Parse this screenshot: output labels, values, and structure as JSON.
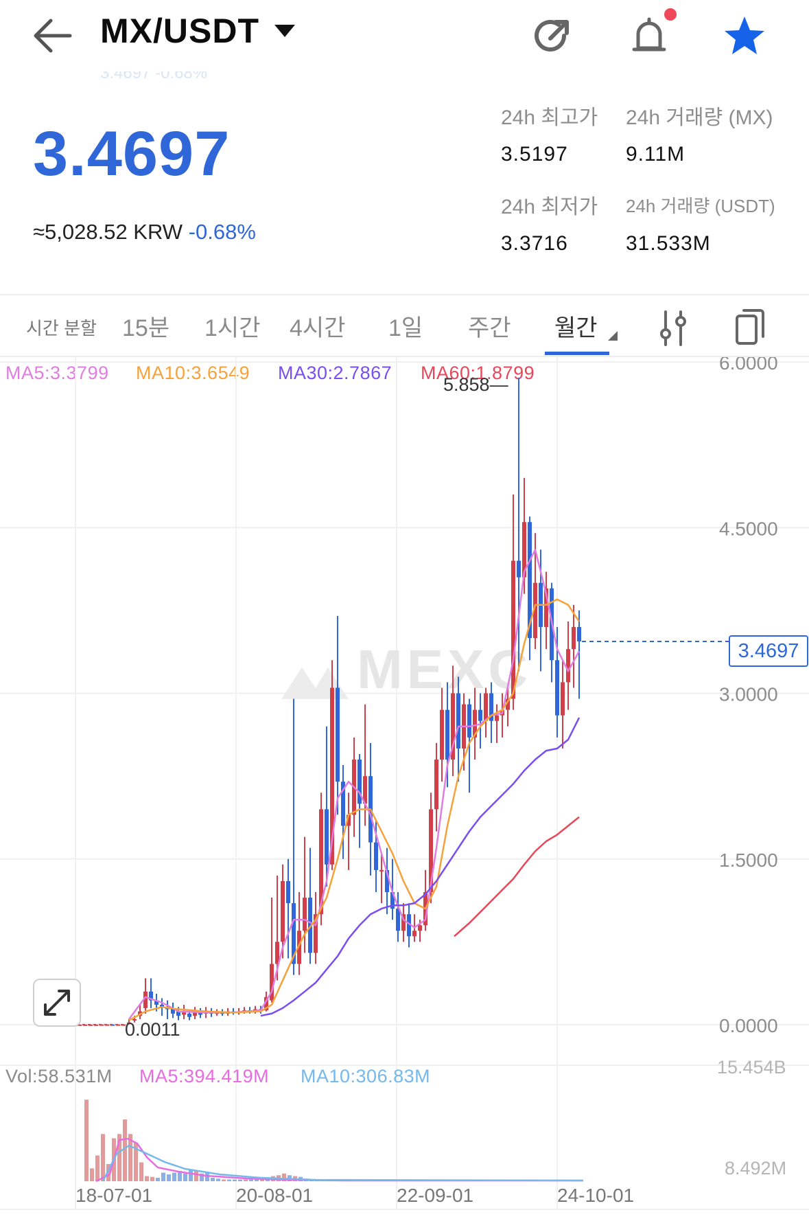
{
  "header": {
    "pair": "MX/USDT",
    "back_icon": "arrow-left-icon",
    "share_icon": "share-arrow-icon",
    "alert_icon": "bell-icon",
    "favorite_icon": "star-icon",
    "alert_dot_color": "#f0485b",
    "favorite_color": "#1662e8",
    "ghost_ticker": "3.4697 -0.68%"
  },
  "ticker": {
    "last_price": "3.4697",
    "krw_equiv": "≈5,028.52 KRW",
    "change_pct": "-0.68%",
    "price_color": "#2f66d8",
    "stats": {
      "high_label": "24h 최고가",
      "high_value": "3.5197",
      "vol_mx_label": "24h 거래량 (MX)",
      "vol_mx_value": "9.11M",
      "low_label": "24h 최저가",
      "low_value": "3.3716",
      "vol_usdt_label": "24h 거래량 (USDT)",
      "vol_usdt_value": "31.533M"
    }
  },
  "tabs": {
    "items": [
      "시간 분할",
      "15분",
      "1시간",
      "4시간",
      "1일",
      "주간",
      "월간"
    ],
    "active": "월간",
    "indicator_icon": "sliders-icon",
    "copy_icon": "copy-icon",
    "accent_color": "#2f66d8"
  },
  "chart": {
    "watermark": "MEXC",
    "expand_icon": "expand-arrows-icon",
    "price_tag": "3.4697",
    "ma_legend": [
      {
        "label": "MA5:3.3799",
        "color": "#e07ee0"
      },
      {
        "label": "MA10:3.6549",
        "color": "#f5a23a"
      },
      {
        "label": "MA30:2.7867",
        "color": "#7a4df2"
      },
      {
        "label": "MA60:1.8799",
        "color": "#e8475a"
      }
    ],
    "vol_legend": [
      {
        "label": "Vol:58.531M",
        "color": "#8a8a8a"
      },
      {
        "label": "MA5:394.419M",
        "color": "#e76ce0"
      },
      {
        "label": "MA10:306.83M",
        "color": "#74b8ec"
      }
    ],
    "y_axis_labels": [
      "6.0000",
      "4.5000",
      "3.0000",
      "1.5000",
      "0.0000"
    ],
    "vol_axis_labels": [
      "15.454B",
      "8.492M"
    ],
    "x_axis_labels": [
      "18-07-01",
      "20-08-01",
      "22-09-01",
      "24-10-01"
    ],
    "max_label": "5.858",
    "min_label": "0.0011"
  },
  "chart_data": {
    "type": "candlestick",
    "x_range": [
      "2018-07",
      "2025-03"
    ],
    "ylim": [
      0,
      6
    ],
    "y_ticks": [
      0,
      1.5,
      3,
      4.5,
      6
    ],
    "grid": true,
    "up_color": "#d1404a",
    "down_color": "#2f66d8",
    "series": [
      {
        "name": "MA5",
        "value": 3.3799
      },
      {
        "name": "MA10",
        "value": 3.6549
      },
      {
        "name": "MA30",
        "value": 2.7867
      },
      {
        "name": "MA60",
        "value": 1.8799
      }
    ],
    "max": 5.858,
    "min": 0.0011,
    "last": 3.4697
  }
}
